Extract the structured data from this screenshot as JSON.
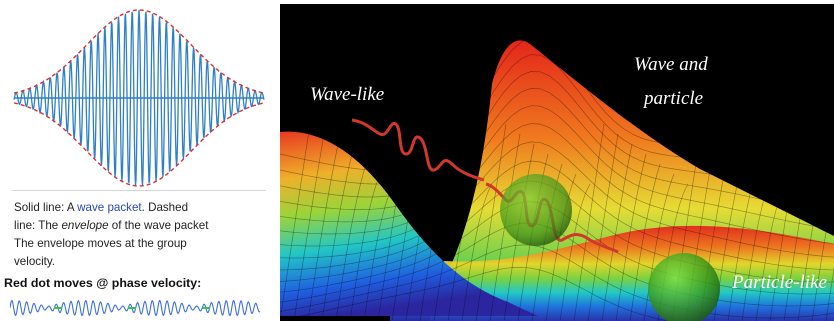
{
  "left": {
    "caption": {
      "line1_prefix": "Solid line: A ",
      "line1_link": "wave packet",
      "line1_suffix": ". Dashed",
      "line2_prefix": "line: The ",
      "line2_em": "envelope",
      "line2_suffix": " of the wave packet",
      "line3": "The envelope moves at the group",
      "line4": "velocity."
    },
    "phase_heading": "Red dot moves @ phase velocity:",
    "colors": {
      "carrier": "#2f7fc8",
      "envelope": "#d9312b",
      "link": "#2a47b6"
    }
  },
  "right": {
    "label_wave_like": "Wave-like",
    "label_wave_and": "Wave and",
    "label_particle": "particle",
    "label_particle_like": "Particle-like",
    "colors": {
      "background": "#000000",
      "squiggle": "#d0382c",
      "sphere": "#3a9a1a"
    }
  }
}
